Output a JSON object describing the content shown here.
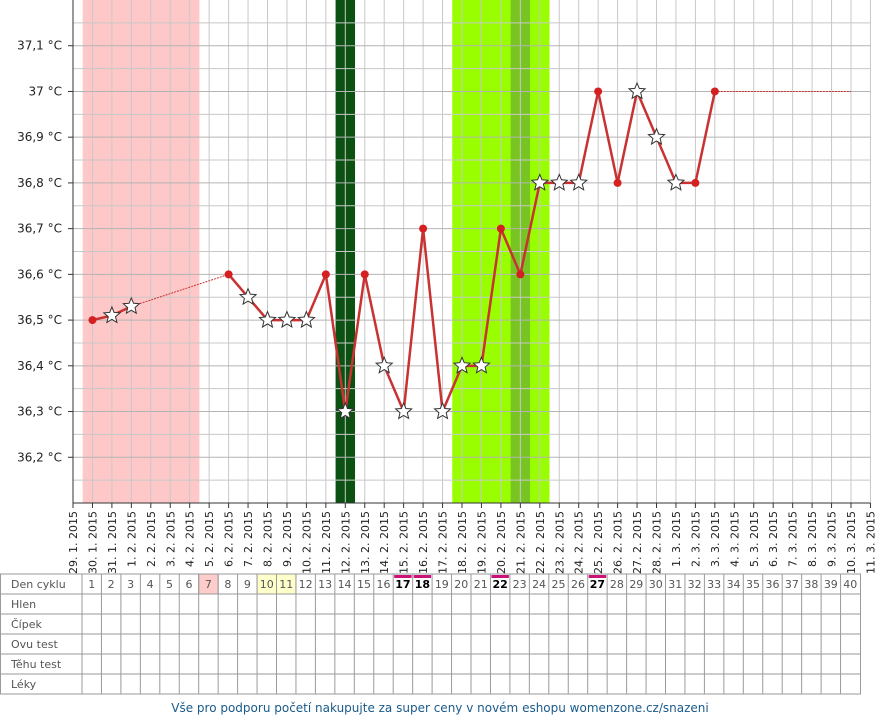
{
  "chart_data": {
    "type": "line",
    "x": [
      "29. 1. 2015",
      "30. 1. 2015",
      "31. 1. 2015",
      "1. 2. 2015",
      "2. 2. 2015",
      "3. 2. 2015",
      "4. 2. 2015",
      "5. 2. 2015",
      "6. 2. 2015",
      "7. 2. 2015",
      "8. 2. 2015",
      "9. 2. 2015",
      "10. 2. 2015",
      "11. 2. 2015",
      "12. 2. 2015",
      "13. 2. 2015",
      "14. 2. 2015",
      "15. 2. 2015",
      "16. 2. 2015",
      "17. 2. 2015",
      "18. 2. 2015",
      "19. 2. 2015",
      "20. 2. 2015",
      "21. 2. 2015",
      "22. 2. 2015",
      "23. 2. 2015",
      "24. 2. 2015",
      "25. 2. 2015",
      "26. 2. 2015",
      "27. 2. 2015",
      "28. 2. 2015",
      "1. 3. 2015",
      "2. 3. 2015",
      "3. 3. 2015",
      "4. 3. 2015",
      "5. 3. 2015",
      "6. 3. 2015",
      "7. 3. 2015",
      "8. 3. 2015",
      "9. 3. 2015",
      "10. 3. 2015",
      "11. 3. 2015"
    ],
    "values": [
      null,
      36.5,
      36.51,
      36.53,
      null,
      null,
      null,
      null,
      36.6,
      36.55,
      36.5,
      36.5,
      36.5,
      36.6,
      36.3,
      36.6,
      36.4,
      36.3,
      36.7,
      36.3,
      36.4,
      36.4,
      36.7,
      36.6,
      36.8,
      36.8,
      36.8,
      37.0,
      36.8,
      37.0,
      36.9,
      36.8,
      36.8,
      37.0,
      null,
      null,
      null,
      null,
      null,
      null,
      null,
      null
    ],
    "markers": [
      null,
      "dot",
      "star",
      "star",
      null,
      null,
      null,
      null,
      "dot",
      "star",
      "star",
      "star",
      "star",
      "dot",
      "star",
      "dot",
      "star",
      "star",
      "dot",
      "star",
      "star",
      "star",
      "dot",
      "dot",
      "star",
      "star",
      "star",
      "dot",
      "dot",
      "star",
      "star",
      "star",
      "dot",
      "dot",
      null,
      null,
      null,
      null,
      null,
      null,
      null,
      null
    ],
    "color": "#c83232",
    "marker_color": "#d42020",
    "ylim": [
      36.1,
      37.2
    ],
    "yticks": [
      {
        "value": 36.2,
        "label": "36,2 °C"
      },
      {
        "value": 36.3,
        "label": "36,3 °C"
      },
      {
        "value": 36.4,
        "label": "36,4 °C"
      },
      {
        "value": 36.5,
        "label": "36,5 °C"
      },
      {
        "value": 36.6,
        "label": "36,6 °C"
      },
      {
        "value": 36.7,
        "label": "36,7 °C"
      },
      {
        "value": 36.8,
        "label": "36,8 °C"
      },
      {
        "value": 36.9,
        "label": "36,9 °C"
      },
      {
        "value": 37.0,
        "label": "37 °C"
      },
      {
        "value": 37.1,
        "label": "37,1 °C"
      }
    ],
    "y_minor_grid": [
      36.15,
      36.25,
      36.35,
      36.45,
      36.55,
      36.65,
      36.75,
      36.85,
      36.95,
      37.05,
      37.15
    ],
    "grid": true,
    "bands": [
      {
        "days": [
          1,
          6
        ],
        "color": "#ffc8c8"
      },
      {
        "days": [
          14,
          14
        ],
        "color": "#0b5212"
      },
      {
        "days": [
          20,
          24
        ],
        "color": "#99ff00"
      },
      {
        "days": [
          23,
          23
        ],
        "color": "#77c422"
      }
    ]
  },
  "table": {
    "rows": [
      "Den cyklu",
      "Hlen",
      "Čípek",
      "Ovu test",
      "Těhu test",
      "Léky"
    ],
    "days": [
      1,
      2,
      3,
      4,
      5,
      6,
      7,
      8,
      9,
      10,
      11,
      12,
      13,
      14,
      15,
      16,
      17,
      18,
      19,
      20,
      21,
      22,
      23,
      24,
      25,
      26,
      27,
      28,
      29,
      30,
      31,
      32,
      33,
      34,
      35,
      36,
      37,
      38,
      39,
      40
    ],
    "day_fills": [
      {
        "day": 7,
        "color": "#ffcccc"
      },
      {
        "day": 10,
        "color": "#ffffcc"
      },
      {
        "day": 11,
        "color": "#ffffcc"
      }
    ],
    "marked_days": [
      17,
      18,
      22,
      27
    ],
    "mark_color": "#cc1177"
  },
  "footer": "Vše pro podporu početí nakupujte za super ceny v novém eshopu womenzone.cz/snazeni"
}
